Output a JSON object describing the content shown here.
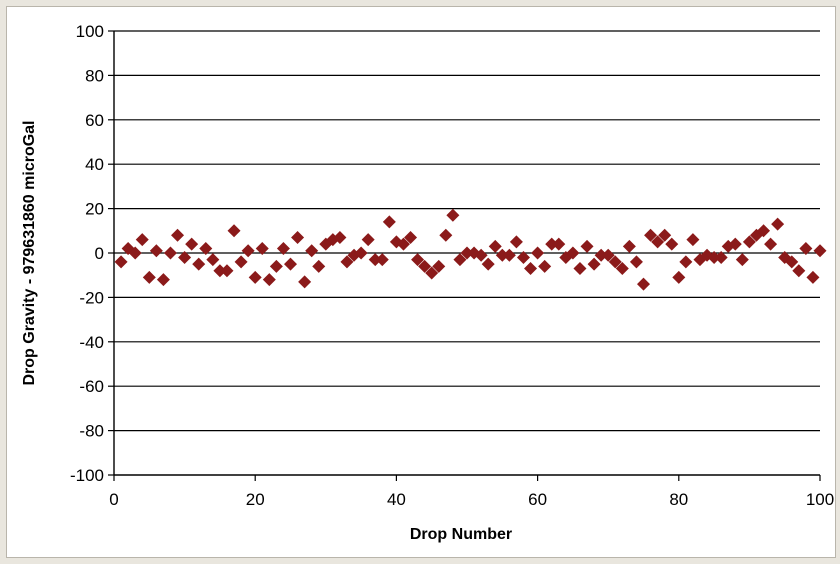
{
  "chart_data": {
    "type": "scatter",
    "title": "",
    "xlabel": "Drop Number",
    "ylabel": "Drop Gravity - 979631860 microGal",
    "xlim": [
      0,
      100
    ],
    "ylim": [
      -100,
      100
    ],
    "x_ticks": [
      0,
      20,
      40,
      60,
      80,
      100
    ],
    "y_ticks": [
      100,
      80,
      60,
      40,
      20,
      0,
      -20,
      -40,
      -60,
      -80,
      -100
    ],
    "grid": "horizontal major gridlines",
    "legend": "none",
    "marker": "diamond",
    "marker_color": "#8b1a1a",
    "series": [
      {
        "x": [
          1,
          2,
          3,
          4,
          5,
          6,
          7,
          8,
          9,
          10,
          11,
          12,
          13,
          14,
          15,
          16,
          17,
          18,
          19,
          20,
          21,
          22,
          23,
          24,
          25,
          26,
          27,
          28,
          29,
          30,
          31,
          32,
          33,
          34,
          35,
          36,
          37,
          38,
          39,
          40,
          41,
          42,
          43,
          44,
          45,
          46,
          47,
          48,
          49,
          50,
          51,
          52,
          53,
          54,
          55,
          56,
          57,
          58,
          59,
          60,
          61,
          62,
          63,
          64,
          65,
          66,
          67,
          68,
          69,
          70,
          71,
          72,
          73,
          74,
          75,
          76,
          77,
          78,
          79,
          80,
          81,
          82,
          83,
          84,
          85,
          86,
          87,
          88,
          89,
          90,
          91,
          92,
          93,
          94,
          95,
          96,
          97,
          98,
          99,
          100
        ],
        "y": [
          -4,
          2,
          0,
          6,
          -11,
          1,
          -12,
          0,
          8,
          -2,
          4,
          -5,
          2,
          -3,
          -8,
          -8,
          10,
          -4,
          1,
          -11,
          2,
          -12,
          -6,
          2,
          -5,
          7,
          -13,
          1,
          -6,
          4,
          6,
          7,
          -4,
          -1,
          0,
          6,
          -3,
          -3,
          14,
          5,
          4,
          7,
          -3,
          -6,
          -9,
          -6,
          8,
          17,
          -3,
          0,
          0,
          -1,
          -5,
          3,
          -1,
          -1,
          5,
          -2,
          -7,
          0,
          -6,
          4,
          4,
          -2,
          0,
          -7,
          3,
          -5,
          -1,
          -1,
          -4,
          -7,
          3,
          -4,
          -14,
          8,
          5,
          8,
          4,
          -11,
          -4,
          6,
          -3,
          -1,
          -2,
          -2,
          3,
          4,
          -3,
          5,
          8,
          10,
          4,
          13,
          -2,
          -4,
          -8,
          2,
          -11,
          1
        ]
      }
    ]
  }
}
